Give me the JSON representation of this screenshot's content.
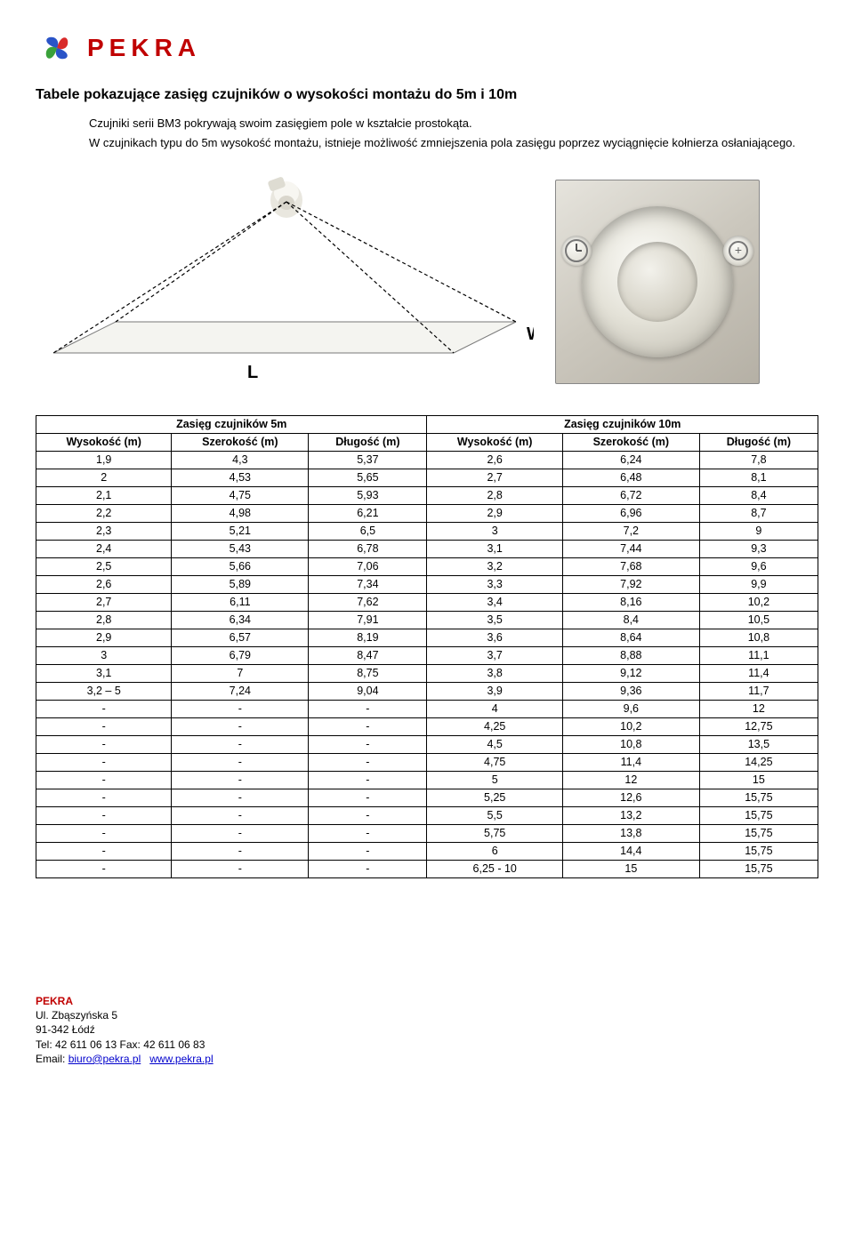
{
  "brand": "PEKRA",
  "logo_colors": {
    "red": "#d82a2a",
    "blue": "#2a54c8",
    "green": "#3aa13a"
  },
  "title": "Tabele pokazujące zasięg czujników o wysokości montażu do 5m i 10m",
  "intro": {
    "p1": "Czujniki serii BM3 pokrywają swoim zasięgiem pole w kształcie prostokąta.",
    "p2": "W czujnikach typu do 5m wysokość montażu, istnieje możliwość zmniejszenia pola zasięgu poprzez wyciągnięcie kołnierza osłaniającego."
  },
  "diagram_labels": {
    "w": "W",
    "l": "L"
  },
  "table": {
    "group5_title": "Zasięg czujników 5m",
    "group10_title": "Zasięg czujników 10m",
    "columns": [
      "Wysokość (m)",
      "Szerokość (m)",
      "Długość (m)",
      "Wysokość (m)",
      "Szerokość (m)",
      "Długość (m)"
    ],
    "rows": [
      [
        "1,9",
        "4,3",
        "5,37",
        "2,6",
        "6,24",
        "7,8"
      ],
      [
        "2",
        "4,53",
        "5,65",
        "2,7",
        "6,48",
        "8,1"
      ],
      [
        "2,1",
        "4,75",
        "5,93",
        "2,8",
        "6,72",
        "8,4"
      ],
      [
        "2,2",
        "4,98",
        "6,21",
        "2,9",
        "6,96",
        "8,7"
      ],
      [
        "2,3",
        "5,21",
        "6,5",
        "3",
        "7,2",
        "9"
      ],
      [
        "2,4",
        "5,43",
        "6,78",
        "3,1",
        "7,44",
        "9,3"
      ],
      [
        "2,5",
        "5,66",
        "7,06",
        "3,2",
        "7,68",
        "9,6"
      ],
      [
        "2,6",
        "5,89",
        "7,34",
        "3,3",
        "7,92",
        "9,9"
      ],
      [
        "2,7",
        "6,11",
        "7,62",
        "3,4",
        "8,16",
        "10,2"
      ],
      [
        "2,8",
        "6,34",
        "7,91",
        "3,5",
        "8,4",
        "10,5"
      ],
      [
        "2,9",
        "6,57",
        "8,19",
        "3,6",
        "8,64",
        "10,8"
      ],
      [
        "3",
        "6,79",
        "8,47",
        "3,7",
        "8,88",
        "11,1"
      ],
      [
        "3,1",
        "7",
        "8,75",
        "3,8",
        "9,12",
        "11,4"
      ],
      [
        "3,2 – 5",
        "7,24",
        "9,04",
        "3,9",
        "9,36",
        "11,7"
      ],
      [
        "-",
        "-",
        "-",
        "4",
        "9,6",
        "12"
      ],
      [
        "-",
        "-",
        "-",
        "4,25",
        "10,2",
        "12,75"
      ],
      [
        "-",
        "-",
        "-",
        "4,5",
        "10,8",
        "13,5"
      ],
      [
        "-",
        "-",
        "-",
        "4,75",
        "11,4",
        "14,25"
      ],
      [
        "-",
        "-",
        "-",
        "5",
        "12",
        "15"
      ],
      [
        "-",
        "-",
        "-",
        "5,25",
        "12,6",
        "15,75"
      ],
      [
        "-",
        "-",
        "-",
        "5,5",
        "13,2",
        "15,75"
      ],
      [
        "-",
        "-",
        "-",
        "5,75",
        "13,8",
        "15,75"
      ],
      [
        "-",
        "-",
        "-",
        "6",
        "14,4",
        "15,75"
      ],
      [
        "-",
        "-",
        "-",
        "6,25 - 10",
        "15",
        "15,75"
      ]
    ]
  },
  "footer": {
    "brand": "PEKRA",
    "address": "Ul. Zbąszyńska 5",
    "postcode_city": "91-342 Łódź",
    "phone_fax": "Tel: 42 611 06 13 Fax: 42 611 06 83",
    "email_label": "Email: ",
    "email": "biuro@pekra.pl",
    "site": "www.pekra.pl"
  }
}
